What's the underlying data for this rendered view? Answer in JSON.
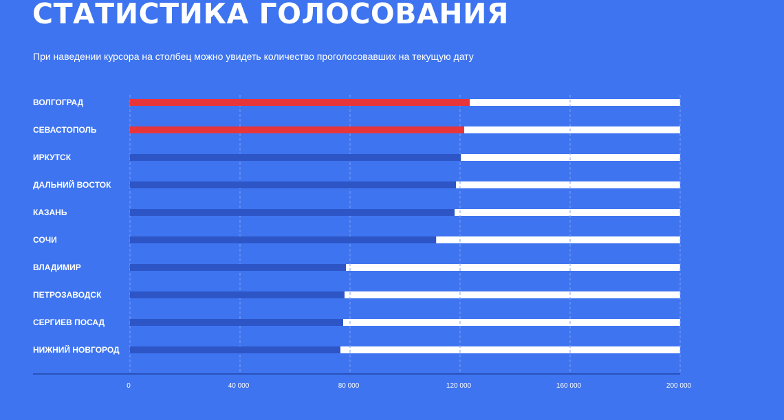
{
  "page": {
    "title": "СТАТИСТИКА ГОЛОСОВАНИЯ",
    "subtitle": "При наведении курсора на столбец можно увидеть количество проголосовавших на текущую дату"
  },
  "colors": {
    "background": "#3e74f0",
    "highlight_bar": "#e8353a",
    "default_bar": "#2d55c6",
    "track": "#ffffff",
    "grid": "#7ea0f3",
    "axis": "#1f3f99"
  },
  "chart_data": {
    "type": "bar",
    "orientation": "horizontal",
    "stacked_remainder_to": 200000,
    "categories": [
      "ВОЛГОГРАД",
      "СЕВАСТОПОЛЬ",
      "ИРКУТСК",
      "ДАЛЬНИЙ ВОСТОК",
      "КАЗАНЬ",
      "СОЧИ",
      "ВЛАДИМИР",
      "ПЕТРОЗАВОДСК",
      "СЕРГИЕВ ПОСАД",
      "НИЖНИЙ НОВГОРОД"
    ],
    "values": [
      123500,
      121500,
      120300,
      118500,
      118000,
      111300,
      78500,
      78000,
      77500,
      76500
    ],
    "highlighted": [
      true,
      true,
      false,
      false,
      false,
      false,
      false,
      false,
      false,
      false
    ],
    "xlim": [
      0,
      200000
    ],
    "ticks": [
      0,
      40000,
      80000,
      120000,
      160000,
      200000
    ],
    "tick_labels": [
      "0",
      "40 000",
      "80 000",
      "120 000",
      "160 000",
      "200 000"
    ],
    "grid": "vertical dashed"
  }
}
